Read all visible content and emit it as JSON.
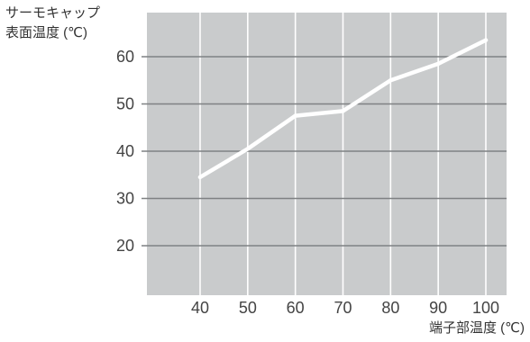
{
  "chart_data": {
    "type": "line",
    "ylabel": [
      "サーモキャップ",
      "表面温度 (℃)"
    ],
    "xlabel": "端子部温度 (℃)",
    "x": [
      40,
      50,
      60,
      70,
      80,
      90,
      100
    ],
    "series": [
      {
        "values": [
          34.5,
          40.5,
          47.5,
          48.5,
          55,
          58.5,
          63.5
        ]
      }
    ],
    "xlim": [
      25,
      110
    ],
    "ylim": [
      10,
      70
    ],
    "yticks": [
      "20",
      "30",
      "40",
      "50",
      "60"
    ],
    "xticks": [
      "40",
      "50",
      "60",
      "70",
      "80",
      "90",
      "100"
    ],
    "grid": true,
    "colors": {
      "plot_background": "#c9cbcc",
      "gridline": "#ffffff",
      "hgridline": "#7f8183",
      "series_line": "#ffffff",
      "text": "#444444"
    }
  }
}
